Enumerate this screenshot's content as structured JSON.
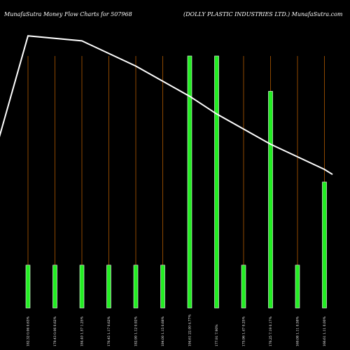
{
  "header": {
    "left_title": "MunafaSutra  Money Flow  Charts for 507968",
    "right_title": "(DOLLY PLASTIC INDUSTRIES LTD.) MunafaSutra.com"
  },
  "colors": {
    "background": "#000000",
    "bar": "#22ee22",
    "bar_border": "#ffffff",
    "gridline": "#b35a00",
    "trend_line": "#ffffff"
  },
  "chart_data": {
    "type": "bar",
    "title": "MunafaSutra  Money Flow  Charts for 507968",
    "categories": [
      "182.32 0.06 0.63%",
      "179.43 0.06 0.62%",
      "184.40 1.57 1.25%",
      "176.45 1.17 0.62%",
      "182.90 1.12 0.92%",
      "184.00 1.15 0.68%",
      "194.61 22.00 4.77%",
      "177.91 7.90%",
      "175.96 1.47 0.25%",
      "176.25 7.19 0.17%",
      "169.08 1.11 0.58%",
      "166.61 1.11 0.00%"
    ],
    "values": [
      17,
      17,
      17,
      17,
      17,
      17,
      100,
      100,
      17,
      86,
      17,
      50
    ],
    "ylim": [
      0,
      100
    ],
    "trend_line": [
      [
        -3,
        -8
      ],
      [
        -1.8,
        40
      ],
      [
        0,
        108
      ],
      [
        2,
        106
      ],
      [
        4,
        96
      ],
      [
        6,
        84
      ],
      [
        7,
        77
      ],
      [
        8,
        71
      ],
      [
        9,
        65
      ],
      [
        10,
        60
      ],
      [
        11,
        55
      ],
      [
        11.3,
        53
      ]
    ]
  }
}
